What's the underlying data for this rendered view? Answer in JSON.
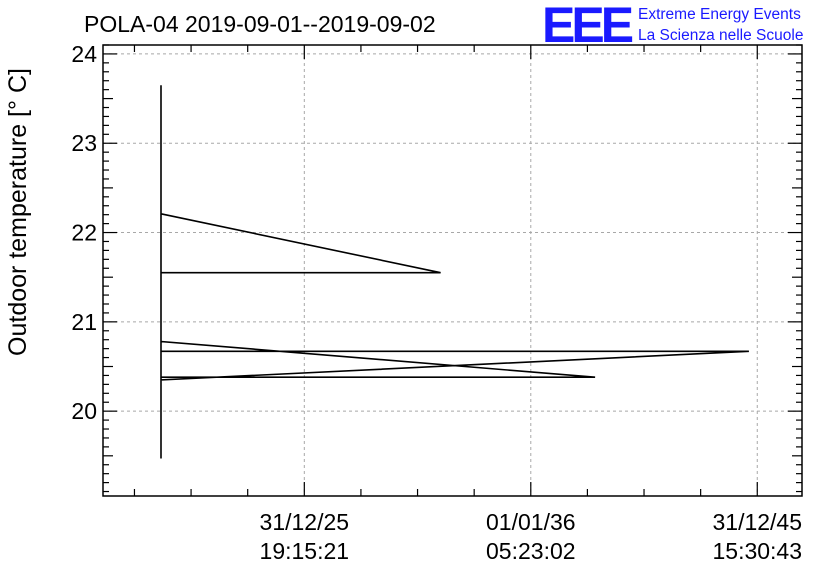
{
  "title": "POLA-04 2019-09-01--2019-09-02",
  "logo": {
    "mark": "EEE",
    "line1": "Extreme Energy Events",
    "line2": "La Scienza nelle Scuole",
    "color": "#1a1aff"
  },
  "chart_data": {
    "type": "line",
    "title": "POLA-04 2019-09-01--2019-09-02",
    "xlabel": "",
    "ylabel": "Outdoor temperature [° C]",
    "ylim": [
      19.05,
      24.1
    ],
    "xlim": [
      0,
      1
    ],
    "grid": true,
    "y_ticks": [
      20,
      21,
      22,
      23,
      24
    ],
    "y_tick_labels": [
      "20",
      "21",
      "22",
      "23",
      "24"
    ],
    "x_ticks": [
      {
        "pos": 0.288,
        "date": "31/12/25",
        "time": "19:15:21"
      },
      {
        "pos": 0.612,
        "date": "01/01/36",
        "time": "05:23:02"
      },
      {
        "pos": 0.936,
        "date": "31/12/45",
        "time": "15:30:43"
      }
    ],
    "series": [
      {
        "values": [
          {
            "x": 0.083,
            "y": 19.47
          },
          {
            "x": 0.083,
            "y": 23.65
          },
          {
            "x": 0.083,
            "y": 22.21
          },
          {
            "x": 0.483,
            "y": 21.55
          },
          {
            "x": 0.083,
            "y": 21.55
          },
          {
            "x": 0.083,
            "y": 20.78
          },
          {
            "x": 0.704,
            "y": 20.38
          },
          {
            "x": 0.083,
            "y": 20.38
          },
          {
            "x": 0.083,
            "y": 20.35
          },
          {
            "x": 0.924,
            "y": 20.67
          },
          {
            "x": 0.083,
            "y": 20.67
          }
        ]
      }
    ]
  }
}
